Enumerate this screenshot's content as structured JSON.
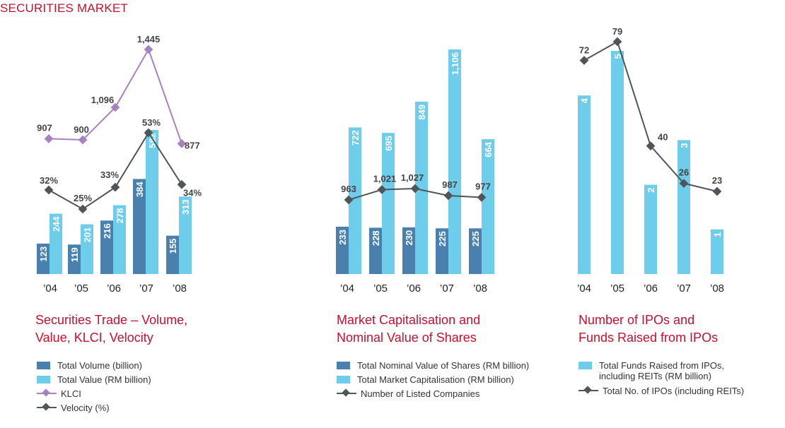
{
  "page": {
    "title": "SECURITIES MARKET"
  },
  "colors": {
    "dark_blue": "#4a80ad",
    "light_blue": "#6dcdea",
    "klci": "#a781c0",
    "velocity": "#505559",
    "title_red": "#c8102e"
  },
  "chart_data": [
    {
      "type": "bar",
      "title": "Securities Trade – Volume, Value, KLCI, Velocity",
      "categories": [
        "’04",
        "’05",
        "’06",
        "’07",
        "’08"
      ],
      "series": [
        {
          "name": "Total Volume (billion)",
          "kind": "bar",
          "values": [
            123,
            119,
            216,
            384,
            155
          ],
          "labels": [
            "123",
            "119",
            "216",
            "384",
            "155"
          ]
        },
        {
          "name": "Total Value (RM billion)",
          "kind": "bar",
          "values": [
            244,
            201,
            278,
            582,
            313
          ],
          "labels": [
            "244",
            "201",
            "278",
            "582",
            "313"
          ]
        },
        {
          "name": "KLCI",
          "kind": "line",
          "values": [
            907,
            900,
            1096,
            1445,
            877
          ],
          "labels": [
            "907",
            "900",
            "1,096",
            "1,445",
            "877"
          ]
        },
        {
          "name": "Velocity (%)",
          "kind": "line",
          "values": [
            32,
            25,
            33,
            53,
            34
          ],
          "labels": [
            "32%",
            "25%",
            "33%",
            "53%",
            "34%"
          ]
        }
      ]
    },
    {
      "type": "bar",
      "title": "Market Capitalisation and Nominal Value of Shares",
      "categories": [
        "’04",
        "’05",
        "’06",
        "’07",
        "’08"
      ],
      "series": [
        {
          "name": "Total Nominal Value of Shares (RM billion)",
          "kind": "bar",
          "values": [
            233,
            228,
            230,
            225,
            225
          ],
          "labels": [
            "233",
            "228",
            "230",
            "225",
            "225"
          ]
        },
        {
          "name": "Total Market Capitalisation (RM billion)",
          "kind": "bar",
          "values": [
            722,
            695,
            849,
            1106,
            664
          ],
          "labels": [
            "722",
            "695",
            "849",
            "1,106",
            "664"
          ]
        },
        {
          "name": "Number of Listed Companies",
          "kind": "line",
          "values": [
            963,
            1021,
            1027,
            987,
            977
          ],
          "labels": [
            "963",
            "1,021",
            "1,027",
            "987",
            "977"
          ]
        }
      ]
    },
    {
      "type": "bar",
      "title": "Number of IPOs and Funds Raised from IPOs",
      "categories": [
        "’04",
        "’05",
        "’06",
        "’07",
        "’08"
      ],
      "series": [
        {
          "name": "Total Funds Raised from IPOs, including REITs (RM billion)",
          "kind": "bar",
          "values": [
            4,
            5,
            2,
            3,
            1
          ],
          "labels": [
            "4",
            "5",
            "2",
            "3",
            "1"
          ]
        },
        {
          "name": "Total No. of IPOs (including REITs)",
          "kind": "line",
          "values": [
            72,
            79,
            40,
            26,
            23
          ],
          "labels": [
            "72",
            "79",
            "40",
            "26",
            "23"
          ]
        }
      ]
    }
  ],
  "captions": {
    "c1": [
      "Securities Trade – Volume,",
      "Value, KLCI, Velocity"
    ],
    "c2": [
      "Market Capitalisation and",
      "Nominal Value of Shares"
    ],
    "c3": [
      "Number of IPOs and",
      "Funds Raised from IPOs"
    ]
  },
  "legends": {
    "c1": [
      "Total Volume (billion)",
      "Total Value (RM billion)",
      "KLCI",
      "Velocity (%)"
    ],
    "c2": [
      "Total Nominal Value of Shares (RM billion)",
      "Total Market Capitalisation (RM billion)",
      "Number of Listed Companies"
    ],
    "c3": [
      "Total Funds Raised from IPOs,",
      "including REITs (RM billion)",
      "Total No. of IPOs (including REITs)"
    ]
  }
}
